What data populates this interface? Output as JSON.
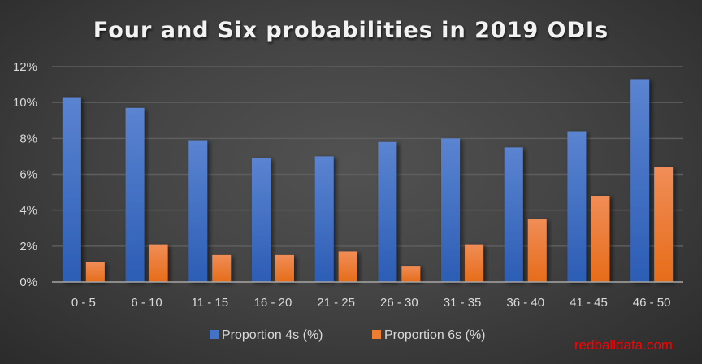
{
  "chart_data": {
    "type": "bar",
    "title": "Four and Six probabilities in 2019 ODIs",
    "xlabel": "",
    "ylabel": "",
    "categories": [
      "0 - 5",
      "6 - 10",
      "11 - 15",
      "16 - 20",
      "21 - 25",
      "26 - 30",
      "31 - 35",
      "36 - 40",
      "41 - 45",
      "46 - 50"
    ],
    "series": [
      {
        "name": "Proportion 4s (%)",
        "color": "#4472c4",
        "values": [
          10.3,
          9.7,
          7.9,
          6.9,
          7.0,
          7.8,
          8.0,
          7.5,
          8.4,
          11.3
        ]
      },
      {
        "name": "Proportion 6s (%)",
        "color": "#ed7d31",
        "values": [
          1.1,
          2.1,
          1.5,
          1.5,
          1.7,
          0.9,
          2.1,
          3.5,
          4.8,
          6.4
        ]
      }
    ],
    "ylim": [
      0,
      12
    ],
    "yticks": [
      0,
      2,
      4,
      6,
      8,
      10,
      12
    ],
    "ytick_labels": [
      "0%",
      "2%",
      "4%",
      "6%",
      "8%",
      "10%",
      "12%"
    ],
    "grid": true,
    "legend_position": "bottom",
    "annotations": [
      "redballdata.com"
    ]
  }
}
